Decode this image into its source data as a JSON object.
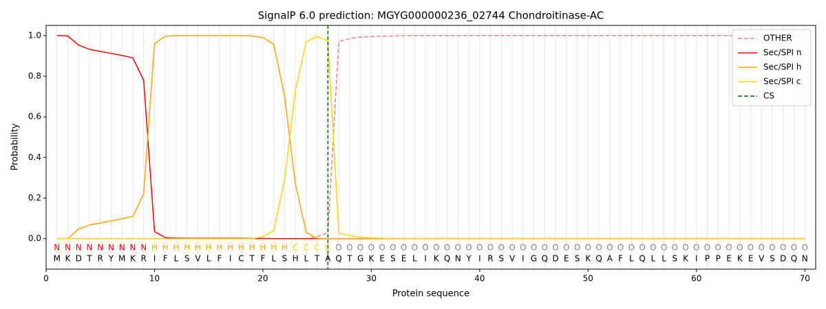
{
  "chart_data": {
    "type": "line",
    "title": "SignalP 6.0 prediction: MGYG000000236_02744 Chondroitinase-AC",
    "xlabel": "Protein sequence",
    "ylabel": "Probability",
    "x": [
      1,
      2,
      3,
      4,
      5,
      6,
      7,
      8,
      9,
      10,
      11,
      12,
      13,
      14,
      15,
      16,
      17,
      18,
      19,
      20,
      21,
      22,
      23,
      24,
      25,
      26,
      27,
      28,
      29,
      30,
      31,
      32,
      33,
      34,
      35,
      36,
      37,
      38,
      39,
      40,
      41,
      42,
      43,
      44,
      45,
      46,
      47,
      48,
      49,
      50,
      51,
      52,
      53,
      54,
      55,
      56,
      57,
      58,
      59,
      60,
      61,
      62,
      63,
      64,
      65,
      66,
      67,
      68,
      69,
      70
    ],
    "sequence": [
      "M",
      "K",
      "D",
      "T",
      "R",
      "Y",
      "M",
      "K",
      "R",
      "I",
      "F",
      "L",
      "S",
      "V",
      "L",
      "F",
      "I",
      "C",
      "T",
      "F",
      "L",
      "S",
      "H",
      "L",
      "T",
      "A",
      "Q",
      "T",
      "G",
      "K",
      "E",
      "S",
      "E",
      "L",
      "I",
      "K",
      "Q",
      "N",
      "Y",
      "I",
      "R",
      "S",
      "V",
      "I",
      "G",
      "Q",
      "D",
      "E",
      "S",
      "K",
      "Q",
      "A",
      "F",
      "L",
      "Q",
      "L",
      "L",
      "S",
      "K",
      "I",
      "P",
      "P",
      "E",
      "K",
      "E",
      "V",
      "S",
      "D",
      "Q",
      "N"
    ],
    "region_labels": [
      "N",
      "N",
      "N",
      "N",
      "N",
      "N",
      "N",
      "N",
      "N",
      "H",
      "H",
      "H",
      "H",
      "H",
      "H",
      "H",
      "H",
      "H",
      "H",
      "H",
      "H",
      "H",
      "C",
      "C",
      "C",
      "C",
      "O",
      "O",
      "O",
      "O",
      "O",
      "O",
      "O",
      "O",
      "O",
      "O",
      "O",
      "O",
      "O",
      "O",
      "O",
      "O",
      "O",
      "O",
      "O",
      "O",
      "O",
      "O",
      "O",
      "O",
      "O",
      "O",
      "O",
      "O",
      "O",
      "O",
      "O",
      "O",
      "O",
      "O",
      "O",
      "O",
      "O",
      "O",
      "O",
      "O",
      "O",
      "O",
      "O",
      "O"
    ],
    "region_colors": {
      "N": "#ff0000",
      "H": "#ffa500",
      "C": "#ffd700",
      "O": "#808080"
    },
    "series": [
      {
        "name": "OTHER",
        "color": "#f08080",
        "style": "dashed",
        "values": [
          0,
          0,
          0,
          0,
          0,
          0,
          0,
          0,
          0,
          0,
          0,
          0,
          0,
          0,
          0,
          0,
          0,
          0,
          0,
          0,
          0,
          0,
          0,
          0,
          0.01,
          0.03,
          0.97,
          0.985,
          0.992,
          0.995,
          0.997,
          0.998,
          1,
          1,
          1,
          1,
          1,
          1,
          1,
          1,
          1,
          1,
          1,
          1,
          1,
          1,
          1,
          1,
          1,
          1,
          1,
          1,
          1,
          1,
          1,
          1,
          1,
          1,
          1,
          1,
          1,
          1,
          1,
          1,
          1,
          1,
          1,
          1,
          1,
          1
        ]
      },
      {
        "name": "Sec/SPI n",
        "color": "#ff0000",
        "style": "solid",
        "values": [
          1.0,
          0.998,
          0.953,
          0.932,
          0.922,
          0.912,
          0.902,
          0.89,
          0.78,
          0.035,
          0.005,
          0.003,
          0.002,
          0.002,
          0.002,
          0.002,
          0.002,
          0.002,
          0.001,
          0.001,
          0,
          0,
          0,
          0,
          0,
          0,
          0,
          0,
          0,
          0,
          0,
          0,
          0,
          0,
          0,
          0,
          0,
          0,
          0,
          0,
          0,
          0,
          0,
          0,
          0,
          0,
          0,
          0,
          0,
          0,
          0,
          0,
          0,
          0,
          0,
          0,
          0,
          0,
          0,
          0,
          0,
          0,
          0,
          0,
          0,
          0,
          0,
          0,
          0,
          0
        ]
      },
      {
        "name": "Sec/SPI h",
        "color": "#ffa500",
        "style": "solid",
        "values": [
          0,
          0,
          0.048,
          0.068,
          0.077,
          0.088,
          0.098,
          0.11,
          0.22,
          0.96,
          0.997,
          1,
          1,
          1,
          1,
          1,
          1,
          1,
          0.998,
          0.99,
          0.957,
          0.7,
          0.27,
          0.03,
          0.002,
          0,
          0,
          0,
          0,
          0,
          0,
          0,
          0,
          0,
          0,
          0,
          0,
          0,
          0,
          0,
          0,
          0,
          0,
          0,
          0,
          0,
          0,
          0,
          0,
          0,
          0,
          0,
          0,
          0,
          0,
          0,
          0,
          0,
          0,
          0,
          0,
          0,
          0,
          0,
          0,
          0,
          0,
          0,
          0,
          0
        ]
      },
      {
        "name": "Sec/SPI c",
        "color": "#ffd700",
        "style": "solid",
        "values": [
          0,
          0,
          0,
          0,
          0,
          0,
          0,
          0,
          0,
          0,
          0,
          0,
          0,
          0,
          0,
          0,
          0,
          0,
          0,
          0.01,
          0.04,
          0.29,
          0.73,
          0.97,
          0.995,
          0.975,
          0.028,
          0.015,
          0.008,
          0.004,
          0.002,
          0,
          0,
          0,
          0,
          0,
          0,
          0,
          0,
          0,
          0,
          0,
          0,
          0,
          0,
          0,
          0,
          0,
          0,
          0,
          0,
          0,
          0,
          0,
          0,
          0,
          0,
          0,
          0,
          0,
          0,
          0,
          0,
          0,
          0,
          0,
          0,
          0,
          0,
          0
        ]
      }
    ],
    "cs_line": {
      "name": "CS",
      "x": 26,
      "color": "#006400"
    },
    "xlim": [
      0,
      71
    ],
    "ylim": [
      -0.15,
      1.05
    ],
    "xticks": [
      0,
      10,
      20,
      30,
      40,
      50,
      60,
      70
    ],
    "yticks": [
      {
        "value": 0,
        "label": "0.0"
      },
      {
        "value": 0.2,
        "label": "0.2"
      },
      {
        "value": 0.4,
        "label": "0.4"
      },
      {
        "value": 0.6,
        "label": "0.6"
      },
      {
        "value": 0.8,
        "label": "0.8"
      },
      {
        "value": 1.0,
        "label": "1.0"
      }
    ],
    "grid": true,
    "legend": "upper right"
  }
}
